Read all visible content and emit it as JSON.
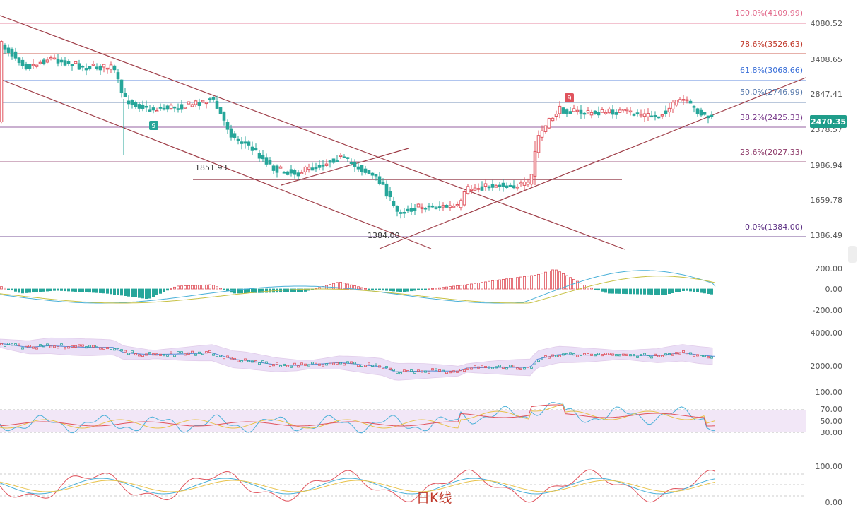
{
  "chart_data": {
    "type": "candlestick",
    "price_axis_ticks": [
      "4080.52",
      "3408.65",
      "2847.41",
      "2378.57",
      "1986.94",
      "1659.78",
      "1386.49"
    ],
    "current_price": "2470.35",
    "fib_levels": [
      {
        "label": "100.0%(4109.99)",
        "value": 4109.99,
        "color": "#e26a8c"
      },
      {
        "label": "78.6%(3526.63)",
        "value": 3526.63,
        "color": "#c0392b"
      },
      {
        "label": "61.8%(3068.66)",
        "value": 3068.66,
        "color": "#3a6fd8"
      },
      {
        "label": "50.0%(2746.99)",
        "value": 2746.99,
        "color": "#5577aa"
      },
      {
        "label": "38.2%(2425.33)",
        "value": 2425.33,
        "color": "#7a3b8c"
      },
      {
        "label": "23.6%(2027.33)",
        "value": 2027.33,
        "color": "#8e3b6a"
      },
      {
        "label": "0.0%(1384.00)",
        "value": 1384.0,
        "color": "#5a2d82"
      }
    ],
    "annotations": [
      "1851.93",
      "1384.00"
    ],
    "markers": [
      "9",
      "9"
    ],
    "indicator_axes": {
      "macd": [
        "200.00",
        "0.00",
        "-200.00"
      ],
      "boll": [
        "4000.00",
        "2000.00"
      ],
      "rsi": [
        "100.00",
        "70.00",
        "50.00",
        "30.00"
      ],
      "kdj": [
        "100.00",
        "0.00"
      ]
    },
    "caption": "日K线",
    "colors": {
      "up": "#e0535d",
      "down": "#26a69a",
      "trend": "#a0404a"
    }
  }
}
